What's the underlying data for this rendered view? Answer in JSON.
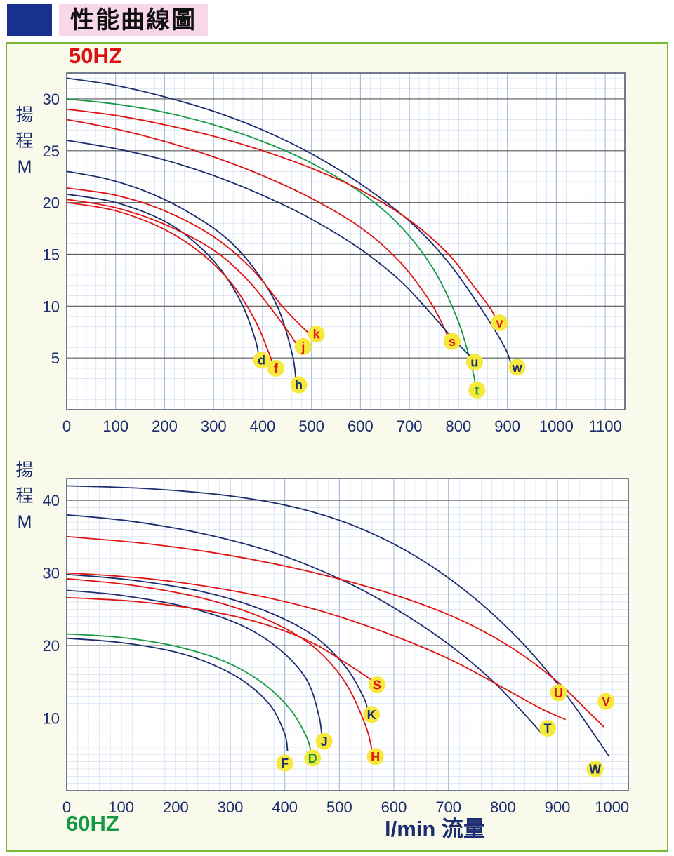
{
  "page": {
    "title": "性能曲線圖"
  },
  "colors": {
    "navy": "#1b2d6e",
    "red": "#e11212",
    "green": "#149a43",
    "label_bubble": "#f6e93c",
    "panel_border": "#79b832",
    "panel_bg": "#fafaec"
  },
  "chart_data": [
    {
      "type": "line",
      "title": "50HZ",
      "freq_label": "50HZ",
      "freq_color": "#dd1111",
      "ylabel": "揚程 M",
      "y_axis_chars": [
        "揚",
        "程",
        "M"
      ],
      "xlabel": "",
      "x_range": [
        0,
        1140
      ],
      "y_range": [
        0,
        32.5
      ],
      "x_ticks": [
        0,
        100,
        200,
        300,
        400,
        500,
        600,
        700,
        800,
        900,
        1000,
        1100
      ],
      "y_ticks": [
        5,
        10,
        15,
        20,
        25,
        30
      ],
      "x_minor": 20,
      "y_minor": 1,
      "grid": true,
      "series": [
        {
          "name": "curve-w",
          "color": "#1b2d6e",
          "points": [
            [
              0,
              32
            ],
            [
              100,
              31.3
            ],
            [
              200,
              30.2
            ],
            [
              300,
              28.8
            ],
            [
              400,
              27
            ],
            [
              500,
              24.7
            ],
            [
              600,
              21.8
            ],
            [
              700,
              18.2
            ],
            [
              780,
              14.2
            ],
            [
              850,
              9.5
            ],
            [
              895,
              6
            ],
            [
              908,
              4.3
            ]
          ]
        },
        {
          "name": "curve-t",
          "color": "#149a43",
          "points": [
            [
              0,
              30
            ],
            [
              100,
              29.5
            ],
            [
              200,
              28.7
            ],
            [
              300,
              27.5
            ],
            [
              400,
              25.9
            ],
            [
              500,
              23.8
            ],
            [
              600,
              21
            ],
            [
              680,
              17.8
            ],
            [
              750,
              13.5
            ],
            [
              800,
              8.5
            ],
            [
              828,
              4
            ],
            [
              835,
              2.3
            ]
          ]
        },
        {
          "name": "curve-v",
          "color": "#e11212",
          "points": [
            [
              0,
              29
            ],
            [
              100,
              28.4
            ],
            [
              200,
              27.5
            ],
            [
              300,
              26.4
            ],
            [
              400,
              25
            ],
            [
              500,
              23.3
            ],
            [
              600,
              21.2
            ],
            [
              700,
              18.3
            ],
            [
              780,
              15
            ],
            [
              830,
              12
            ],
            [
              865,
              9.8
            ],
            [
              878,
              8.6
            ]
          ]
        },
        {
          "name": "curve-s",
          "color": "#e11212",
          "points": [
            [
              0,
              28
            ],
            [
              100,
              27.1
            ],
            [
              200,
              25.9
            ],
            [
              300,
              24.4
            ],
            [
              400,
              22.6
            ],
            [
              500,
              20.4
            ],
            [
              600,
              17.6
            ],
            [
              680,
              14.3
            ],
            [
              740,
              10.6
            ],
            [
              770,
              8
            ],
            [
              780,
              6.8
            ]
          ]
        },
        {
          "name": "curve-u",
          "color": "#1b2d6e",
          "points": [
            [
              0,
              26
            ],
            [
              100,
              25.2
            ],
            [
              200,
              24.1
            ],
            [
              300,
              22.6
            ],
            [
              400,
              20.7
            ],
            [
              500,
              18.4
            ],
            [
              600,
              15.5
            ],
            [
              680,
              12.5
            ],
            [
              740,
              9.5
            ],
            [
              790,
              6.8
            ],
            [
              828,
              5
            ]
          ]
        },
        {
          "name": "curve-h",
          "color": "#1b2d6e",
          "points": [
            [
              0,
              23
            ],
            [
              80,
              22.3
            ],
            [
              160,
              21.1
            ],
            [
              240,
              19.3
            ],
            [
              320,
              16.8
            ],
            [
              380,
              13.8
            ],
            [
              430,
              10
            ],
            [
              460,
              5.5
            ],
            [
              468,
              3
            ]
          ]
        },
        {
          "name": "curve-k",
          "color": "#e11212",
          "points": [
            [
              0,
              21.4
            ],
            [
              100,
              20.7
            ],
            [
              200,
              19.2
            ],
            [
              300,
              16.7
            ],
            [
              380,
              13.5
            ],
            [
              440,
              10
            ],
            [
              485,
              7.8
            ],
            [
              500,
              7.2
            ]
          ]
        },
        {
          "name": "curve-d",
          "color": "#1b2d6e",
          "points": [
            [
              0,
              20.8
            ],
            [
              100,
              20
            ],
            [
              200,
              18.2
            ],
            [
              270,
              15.8
            ],
            [
              320,
              13.2
            ],
            [
              360,
              10
            ],
            [
              385,
              6.8
            ],
            [
              392,
              5.3
            ]
          ]
        },
        {
          "name": "curve-j",
          "color": "#e11212",
          "points": [
            [
              0,
              20.3
            ],
            [
              100,
              19.5
            ],
            [
              200,
              17.9
            ],
            [
              300,
              15.4
            ],
            [
              370,
              12.5
            ],
            [
              425,
              9.3
            ],
            [
              460,
              7
            ],
            [
              470,
              6.3
            ]
          ]
        },
        {
          "name": "curve-f",
          "color": "#e11212",
          "points": [
            [
              0,
              20
            ],
            [
              100,
              19.2
            ],
            [
              200,
              17.4
            ],
            [
              280,
              14.9
            ],
            [
              340,
              12
            ],
            [
              385,
              8.6
            ],
            [
              412,
              5.6
            ],
            [
              420,
              4.5
            ]
          ]
        }
      ],
      "point_labels": [
        {
          "text": "d",
          "x": 398,
          "y": 4.8,
          "color": "#1b2d6e"
        },
        {
          "text": "f",
          "x": 427,
          "y": 4.0,
          "color": "#e11212"
        },
        {
          "text": "h",
          "x": 474,
          "y": 2.4,
          "color": "#1b2d6e"
        },
        {
          "text": "j",
          "x": 483,
          "y": 6.1,
          "color": "#e11212"
        },
        {
          "text": "k",
          "x": 510,
          "y": 7.3,
          "color": "#e11212"
        },
        {
          "text": "s",
          "x": 787,
          "y": 6.6,
          "color": "#e11212"
        },
        {
          "text": "t",
          "x": 838,
          "y": 1.9,
          "color": "#149a43"
        },
        {
          "text": "u",
          "x": 833,
          "y": 4.6,
          "color": "#1b2d6e"
        },
        {
          "text": "v",
          "x": 884,
          "y": 8.4,
          "color": "#e11212"
        },
        {
          "text": "w",
          "x": 920,
          "y": 4.1,
          "color": "#1b2d6e"
        }
      ]
    },
    {
      "type": "line",
      "title": "60HZ",
      "freq_label": "60HZ",
      "freq_color": "#149a43",
      "ylabel": "揚程 M",
      "y_axis_chars": [
        "揚",
        "程",
        "M"
      ],
      "xlabel": "l/min 流量",
      "x_range": [
        0,
        1030
      ],
      "y_range": [
        0,
        43
      ],
      "x_ticks": [
        0,
        100,
        200,
        300,
        400,
        500,
        600,
        700,
        800,
        900,
        1000
      ],
      "y_ticks": [
        10,
        20,
        30,
        40
      ],
      "x_minor": 20,
      "y_minor": 1,
      "grid": true,
      "series": [
        {
          "name": "curve-W",
          "color": "#1b2d6e",
          "points": [
            [
              0,
              42
            ],
            [
              150,
              41.6
            ],
            [
              300,
              40.6
            ],
            [
              420,
              39
            ],
            [
              530,
              36.4
            ],
            [
              640,
              32.3
            ],
            [
              740,
              27
            ],
            [
              830,
              20.8
            ],
            [
              910,
              13.8
            ],
            [
              965,
              8
            ],
            [
              995,
              4.7
            ]
          ]
        },
        {
          "name": "curve-T",
          "color": "#1b2d6e",
          "points": [
            [
              0,
              38
            ],
            [
              120,
              37.1
            ],
            [
              250,
              35.4
            ],
            [
              380,
              32.8
            ],
            [
              500,
              29.2
            ],
            [
              600,
              25.2
            ],
            [
              700,
              20.2
            ],
            [
              780,
              15.2
            ],
            [
              840,
              10.5
            ],
            [
              870,
              8
            ]
          ]
        },
        {
          "name": "curve-V",
          "color": "#e11212",
          "points": [
            [
              0,
              35
            ],
            [
              150,
              34
            ],
            [
              300,
              32.4
            ],
            [
              450,
              30.1
            ],
            [
              600,
              27
            ],
            [
              720,
              23.6
            ],
            [
              820,
              19.5
            ],
            [
              900,
              15
            ],
            [
              955,
              11
            ],
            [
              985,
              8.8
            ]
          ]
        },
        {
          "name": "curve-U",
          "color": "#e11212",
          "points": [
            [
              0,
              30
            ],
            [
              150,
              29.2
            ],
            [
              300,
              27.6
            ],
            [
              450,
              25.1
            ],
            [
              580,
              21.9
            ],
            [
              700,
              18.2
            ],
            [
              800,
              14.2
            ],
            [
              870,
              11.3
            ],
            [
              915,
              9.8
            ]
          ]
        },
        {
          "name": "curve-K",
          "color": "#1b2d6e",
          "points": [
            [
              0,
              29.8
            ],
            [
              120,
              29
            ],
            [
              250,
              27.4
            ],
            [
              360,
              24.9
            ],
            [
              450,
              21.5
            ],
            [
              510,
              17.2
            ],
            [
              545,
              12.8
            ],
            [
              552,
              10.8
            ]
          ]
        },
        {
          "name": "curve-H",
          "color": "#e11212",
          "points": [
            [
              0,
              29.2
            ],
            [
              120,
              28.3
            ],
            [
              250,
              26.5
            ],
            [
              360,
              23.8
            ],
            [
              450,
              20
            ],
            [
              510,
              15
            ],
            [
              548,
              9
            ],
            [
              560,
              5.5
            ]
          ]
        },
        {
          "name": "curve-J",
          "color": "#1b2d6e",
          "points": [
            [
              0,
              27.6
            ],
            [
              100,
              26.9
            ],
            [
              220,
              25.3
            ],
            [
              320,
              22.8
            ],
            [
              390,
              19.5
            ],
            [
              440,
              15.3
            ],
            [
              462,
              10.5
            ],
            [
              468,
              7.5
            ]
          ]
        },
        {
          "name": "curve-S",
          "color": "#e11212",
          "points": [
            [
              0,
              26.6
            ],
            [
              120,
              26.1
            ],
            [
              250,
              24.9
            ],
            [
              360,
              23
            ],
            [
              450,
              20.4
            ],
            [
              520,
              17.2
            ],
            [
              558,
              15.3
            ],
            [
              565,
              14.9
            ]
          ]
        },
        {
          "name": "curve-D",
          "color": "#149a43",
          "points": [
            [
              0,
              21.6
            ],
            [
              100,
              21.1
            ],
            [
              200,
              19.9
            ],
            [
              290,
              17.8
            ],
            [
              360,
              14.8
            ],
            [
              410,
              11.2
            ],
            [
              440,
              7.4
            ],
            [
              448,
              5.2
            ]
          ]
        },
        {
          "name": "curve-F",
          "color": "#1b2d6e",
          "points": [
            [
              0,
              21
            ],
            [
              100,
              20.4
            ],
            [
              200,
              19.1
            ],
            [
              270,
              17.3
            ],
            [
              330,
              14.8
            ],
            [
              375,
              11.6
            ],
            [
              400,
              7.8
            ],
            [
              405,
              5.5
            ]
          ]
        }
      ],
      "point_labels": [
        {
          "text": "F",
          "x": 400,
          "y": 3.8,
          "color": "#1b2d6e"
        },
        {
          "text": "D",
          "x": 451,
          "y": 4.5,
          "color": "#149a43"
        },
        {
          "text": "J",
          "x": 472,
          "y": 6.8,
          "color": "#1b2d6e"
        },
        {
          "text": "H",
          "x": 566,
          "y": 4.7,
          "color": "#e11212"
        },
        {
          "text": "K",
          "x": 559,
          "y": 10.5,
          "color": "#1b2d6e"
        },
        {
          "text": "S",
          "x": 569,
          "y": 14.6,
          "color": "#e11212"
        },
        {
          "text": "T",
          "x": 882,
          "y": 8.6,
          "color": "#1b2d6e"
        },
        {
          "text": "U",
          "x": 902,
          "y": 13.5,
          "color": "#e11212"
        },
        {
          "text": "V",
          "x": 989,
          "y": 12.3,
          "color": "#e11212"
        },
        {
          "text": "W",
          "x": 969,
          "y": 3.0,
          "color": "#1b2d6e"
        }
      ]
    }
  ]
}
